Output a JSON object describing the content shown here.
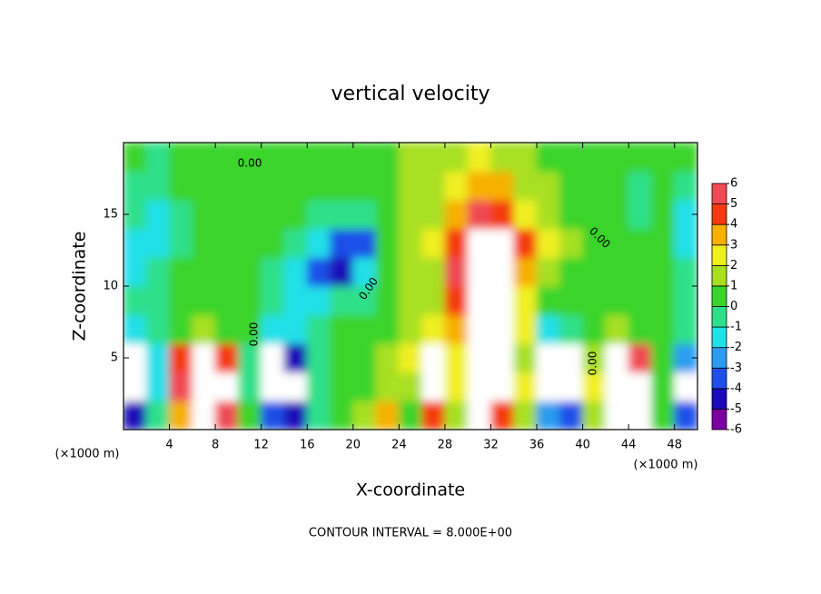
{
  "chart_data": {
    "type": "heatmap",
    "title": "vertical velocity",
    "x_label": "X-coordinate",
    "y_label": "Z-coordinate",
    "x_unit_label": "(×1000 m)",
    "y_unit_label": "(×1000 m)",
    "footnote": "CONTOUR INTERVAL = 8.000E+00",
    "contour_label": "0.00",
    "xlim": [
      0,
      50
    ],
    "ylim": [
      0,
      20
    ],
    "xticks": [
      4,
      8,
      12,
      16,
      20,
      24,
      28,
      32,
      36,
      40,
      44,
      48
    ],
    "yticks": [
      5,
      10,
      15
    ],
    "x": [
      1,
      3,
      5,
      7,
      9,
      11,
      13,
      15,
      17,
      19,
      21,
      23,
      25,
      27,
      29,
      31,
      33,
      35,
      37,
      39,
      41,
      43,
      45,
      47,
      49
    ],
    "y": [
      1,
      3,
      5,
      7,
      9,
      11,
      13,
      15,
      17,
      19
    ],
    "z": [
      [
        -5,
        -1,
        3,
        7,
        5,
        0,
        -4,
        -5,
        -1,
        0.5,
        1,
        3,
        0.5,
        4,
        1,
        6,
        4,
        1,
        -3,
        -4,
        1,
        7,
        6,
        0,
        -4
      ],
      [
        -7,
        -2,
        5,
        8,
        6,
        -1,
        -7,
        -6,
        -1,
        0.5,
        0.5,
        1,
        1,
        7,
        2,
        7,
        6,
        2,
        -6,
        -7,
        2,
        8,
        7,
        0,
        -6
      ],
      [
        -6,
        -2,
        4,
        6,
        4,
        -1,
        -7,
        -5,
        -1,
        0.5,
        0.5,
        1,
        2,
        6,
        2,
        8,
        7,
        1,
        -6,
        -6,
        1,
        7,
        5,
        0,
        -3
      ],
      [
        -2,
        -1,
        0.5,
        1,
        0.5,
        0,
        -2,
        -2,
        -1,
        0.5,
        0.5,
        0.5,
        1,
        2,
        3,
        8,
        6,
        2,
        -2,
        -1,
        0.5,
        1,
        0.5,
        0,
        -1
      ],
      [
        -1,
        -0.5,
        0,
        0,
        0,
        0,
        -1,
        -1.5,
        -2,
        -1,
        -0.5,
        0.5,
        1,
        1.5,
        4,
        8,
        7,
        2,
        0.5,
        0,
        0,
        0.5,
        0.5,
        0,
        -0.5
      ],
      [
        -1.5,
        -1,
        0,
        0,
        0,
        0,
        -0.5,
        -2,
        -4,
        -5,
        -2,
        0.5,
        1,
        1.5,
        5,
        8,
        8,
        3,
        1,
        0.5,
        0.5,
        0.5,
        0,
        0,
        -1
      ],
      [
        -1.5,
        -2,
        -0.5,
        0,
        0,
        0,
        0,
        -1,
        -2,
        -4,
        -4,
        0,
        1,
        2,
        4,
        6,
        7,
        4,
        2,
        1,
        0.5,
        0.5,
        0,
        0,
        -1.5
      ],
      [
        -1,
        -2,
        -0.5,
        0,
        0.5,
        0.5,
        0,
        0,
        -0.5,
        -1,
        -1,
        0.5,
        1,
        1.5,
        3,
        5,
        4,
        2,
        1,
        0.5,
        0.5,
        0,
        -1,
        0,
        -1.5
      ],
      [
        -0.5,
        -1,
        0,
        0.5,
        0.5,
        0.5,
        0.5,
        0,
        0,
        0,
        0.5,
        0.5,
        1,
        1.5,
        2,
        3,
        3,
        1,
        1,
        0.5,
        0.5,
        0,
        -1,
        0,
        -1
      ],
      [
        0,
        -0.5,
        0,
        0.5,
        0.5,
        0.5,
        0.5,
        0,
        0,
        0,
        0,
        0.5,
        1,
        1,
        1.5,
        2,
        1.5,
        1,
        0.5,
        0.5,
        0.5,
        0,
        0,
        0,
        0
      ]
    ],
    "colorbar": {
      "levels": [
        -6,
        -5,
        -4,
        -3,
        -2,
        -1,
        0,
        1,
        2,
        3,
        4,
        5,
        6
      ],
      "colors": [
        "#7a00a0",
        "#1a0ab8",
        "#1f4fe8",
        "#2c9cf0",
        "#22e0e8",
        "#2ee08a",
        "#3ad42a",
        "#a8e020",
        "#f0f020",
        "#f7b000",
        "#f43a10",
        "#f04a55"
      ],
      "over_color": "#ffffff"
    }
  }
}
